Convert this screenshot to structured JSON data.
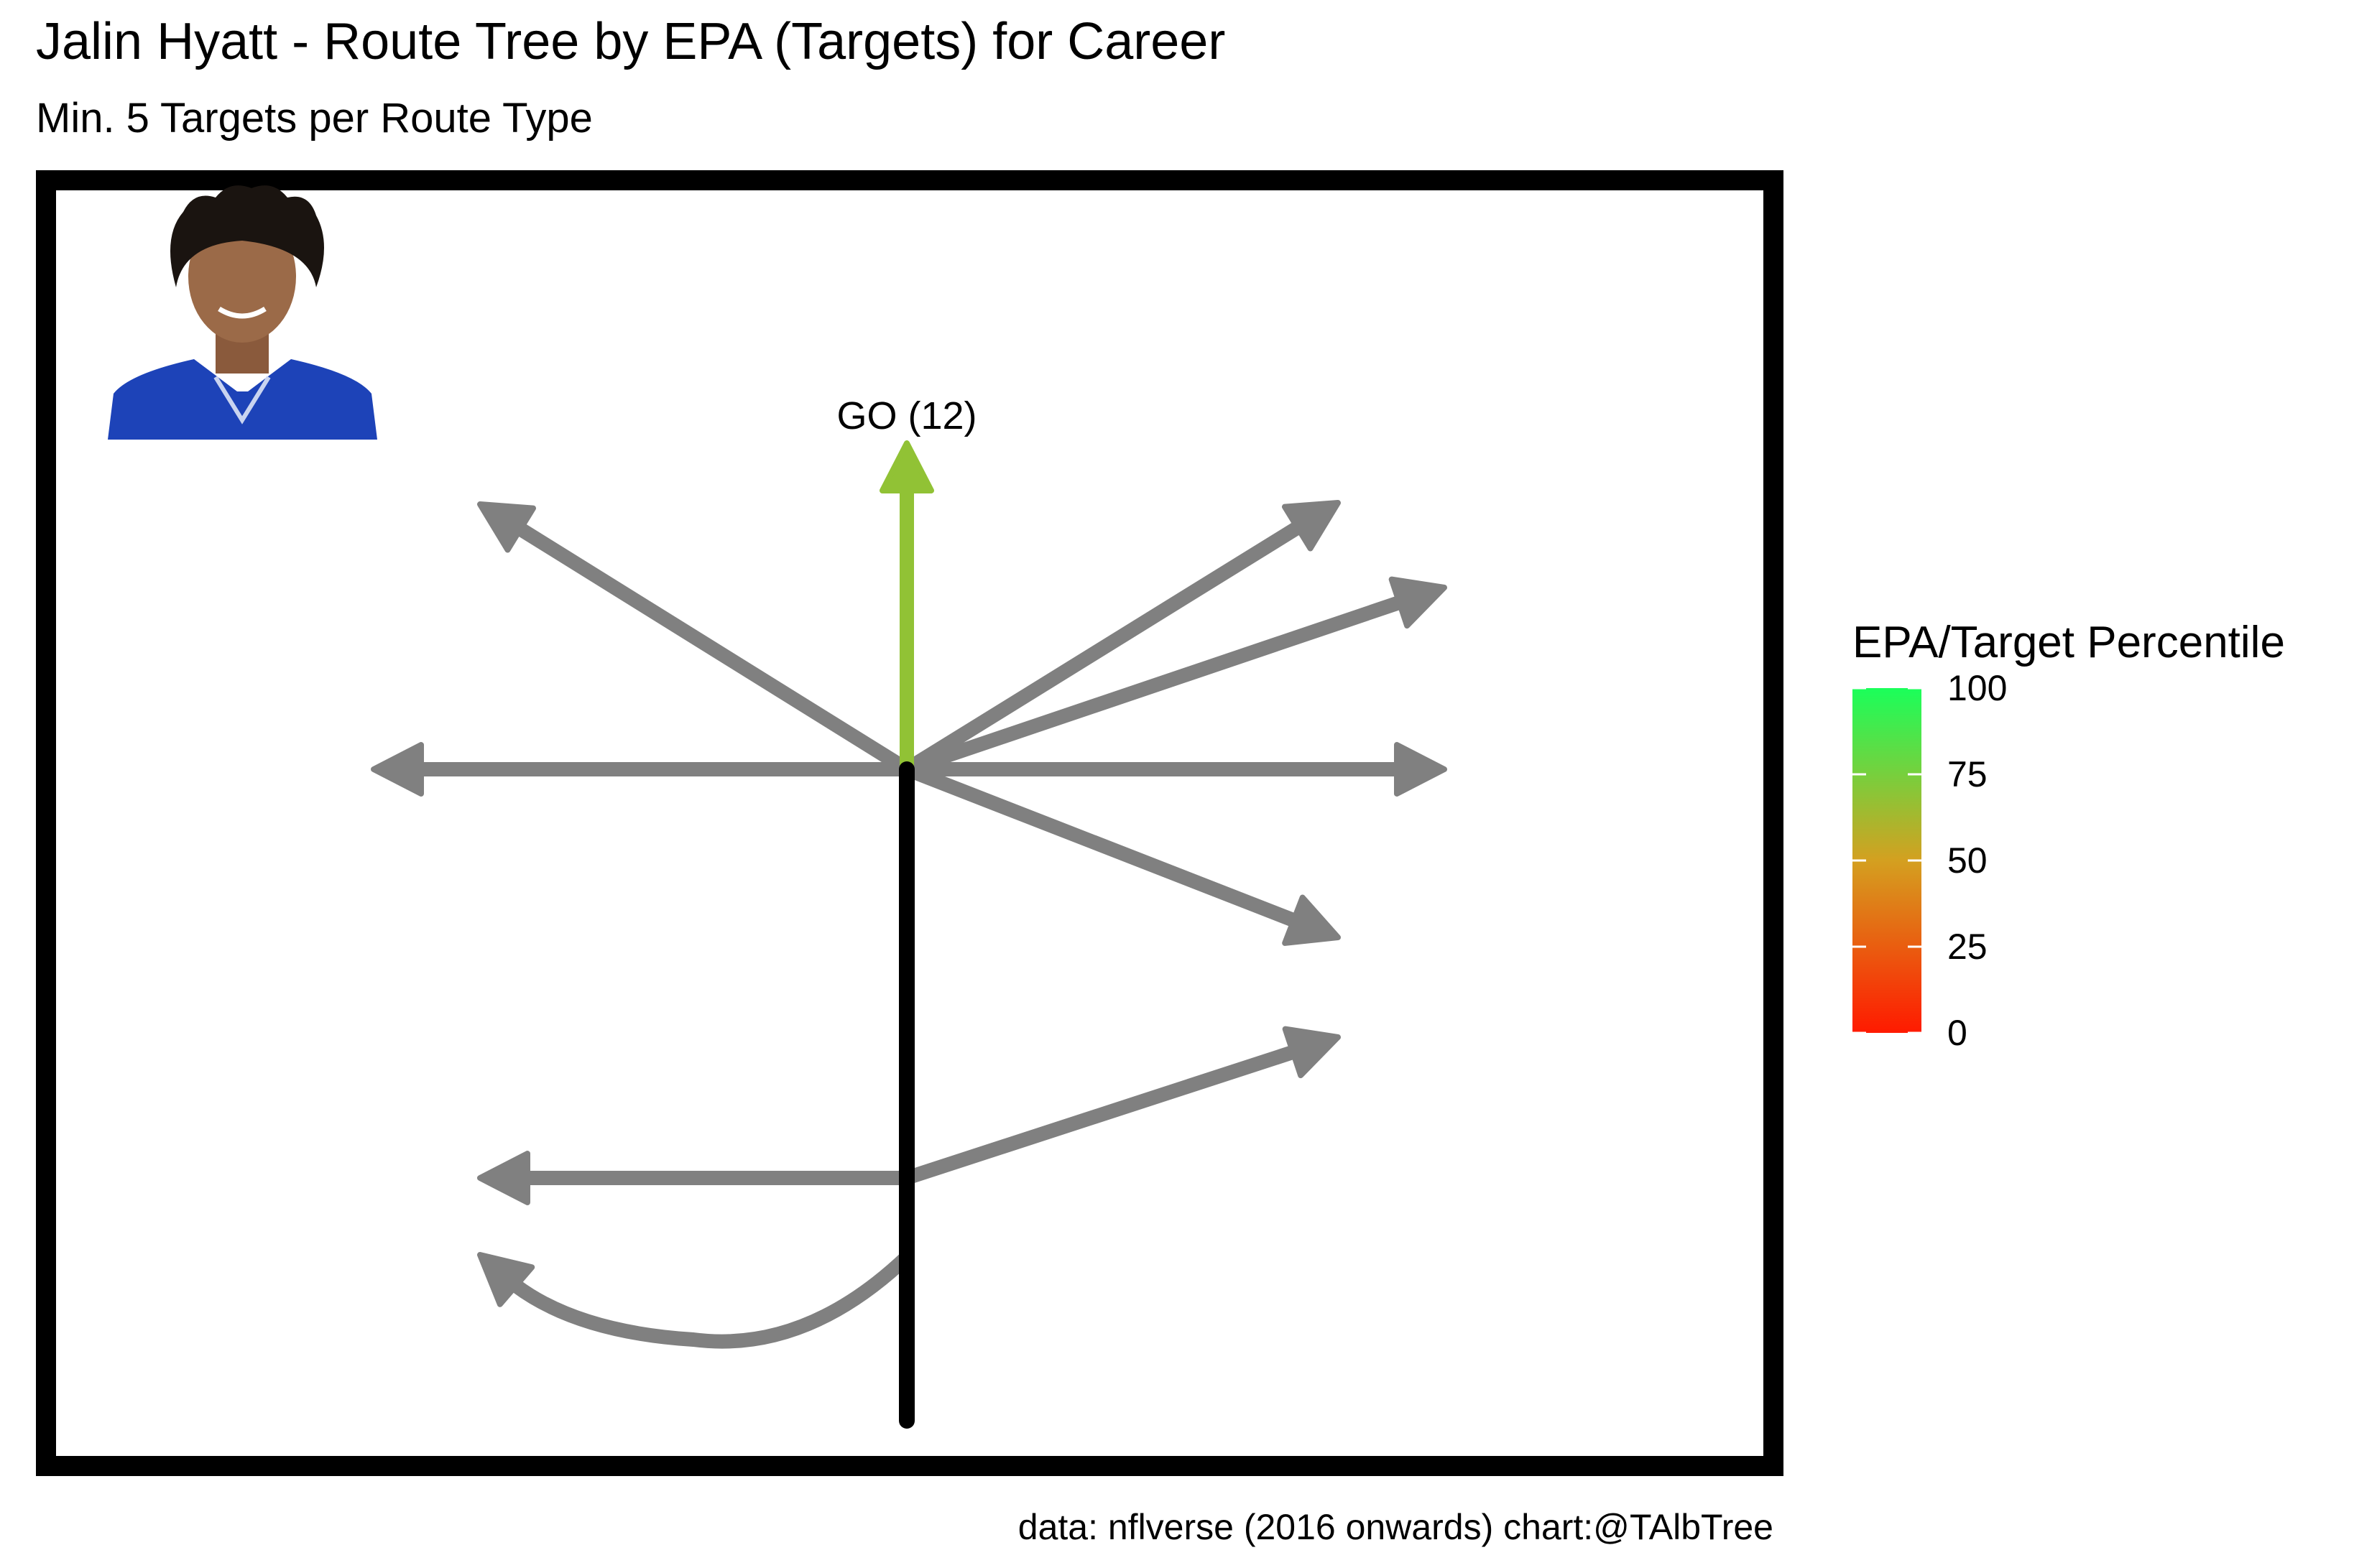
{
  "chart_data": {
    "type": "route-tree",
    "title": "Jalin Hyatt - Route Tree by EPA (Targets) for Career",
    "subtitle": "Min. 5 Targets per Route Type",
    "caption": "data: nflverse (2016 onwards)  chart:@TAlbTree",
    "legend": {
      "title": "EPA/Target Percentile",
      "ticks": [
        0,
        25,
        50,
        75,
        100
      ],
      "tick_labels": [
        "0",
        "25",
        "50",
        "75",
        "100"
      ],
      "range": [
        0,
        100
      ],
      "colors": {
        "low": "#ff1a00",
        "mid": "#d4a020",
        "high": "#1aff5a"
      },
      "placement": "right"
    },
    "colors": {
      "stem": "#000000",
      "below_threshold": "#808080",
      "frame": "#000000",
      "jersey": "#1d43b8"
    },
    "routes": [
      {
        "label": "GO (12)",
        "route": "go",
        "percentile": 68,
        "highlighted": true
      },
      {
        "route": "post",
        "highlighted": false
      },
      {
        "route": "corner",
        "highlighted": false
      },
      {
        "route": "out",
        "highlighted": false
      },
      {
        "route": "in",
        "highlighted": false
      },
      {
        "route": "wheel",
        "highlighted": false
      },
      {
        "route": "hitch",
        "highlighted": false
      },
      {
        "route": "slant",
        "highlighted": false
      },
      {
        "route": "flat",
        "highlighted": false
      },
      {
        "route": "screen",
        "highlighted": false
      }
    ],
    "headshot": {
      "player": "Jalin Hyatt",
      "icon": "player-headshot"
    }
  }
}
